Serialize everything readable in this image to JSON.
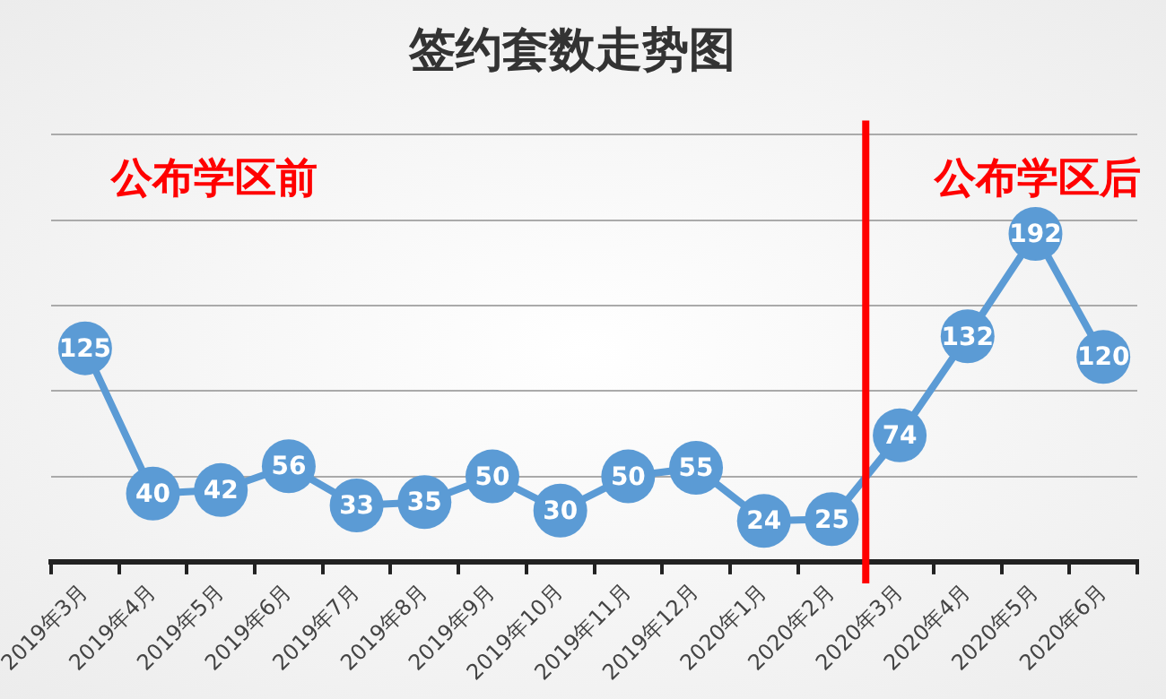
{
  "chart_data": {
    "type": "line",
    "title": "签约套数走势图",
    "categories": [
      "2019年3月",
      "2019年4月",
      "2019年5月",
      "2019年6月",
      "2019年7月",
      "2019年8月",
      "2019年9月",
      "2019年10月",
      "2019年11月",
      "2019年12月",
      "2020年1月",
      "2020年2月",
      "2020年3月",
      "2020年4月",
      "2020年5月",
      "2020年6月"
    ],
    "series": [
      {
        "color": "#5b9bd5",
        "values": [
          125,
          40,
          42,
          56,
          33,
          35,
          50,
          30,
          50,
          55,
          24,
          25,
          74,
          132,
          192,
          120
        ]
      }
    ],
    "ylim": [
      0,
      250
    ],
    "yticks": [
      {
        "value": 0,
        "label": null
      },
      {
        "value": 50,
        "label": null
      },
      {
        "value": 100,
        "label": null
      },
      {
        "value": 150,
        "label": null
      },
      {
        "value": 200,
        "label": null
      },
      {
        "value": 250,
        "label": null
      }
    ],
    "tick_labels": "x",
    "grid": "y",
    "legend": false,
    "marker": "circle",
    "line_style": "solid",
    "data_labels": true,
    "ref_lines": [
      {
        "axis": "x",
        "value": "2020年3月",
        "color": "#ff0000"
      }
    ],
    "annotations": [
      "公布学区前",
      "公布学区后"
    ]
  }
}
